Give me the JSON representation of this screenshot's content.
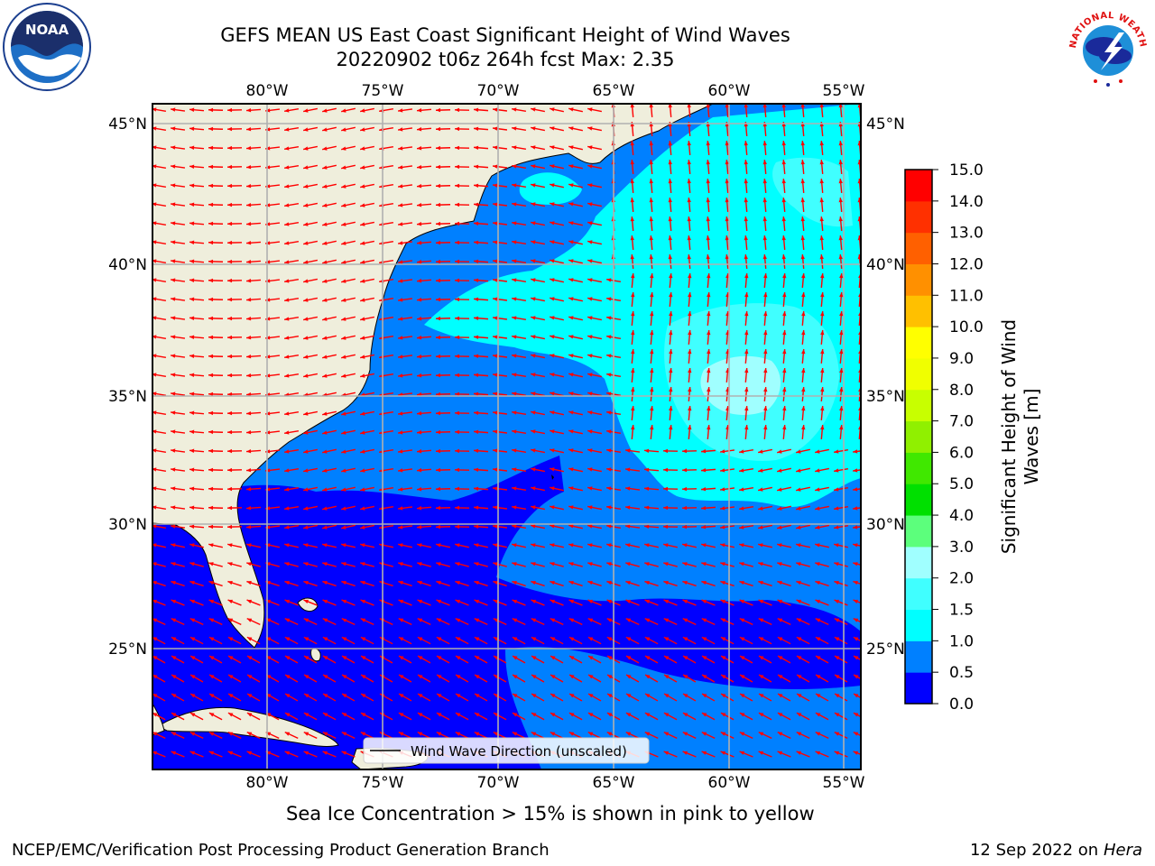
{
  "title_line1": "GEFS MEAN US East Coast Significant Height of Wind Waves",
  "title_line2": "20220902 t06z 264h fcst   Max: 2.35",
  "lon_ticks": [
    "80°W",
    "75°W",
    "70°W",
    "65°W",
    "60°W",
    "55°W"
  ],
  "lat_ticks": [
    "45°N",
    "40°N",
    "35°N",
    "30°N",
    "25°N"
  ],
  "legend_label": "Wind Wave Direction (unscaled)",
  "colorbar": {
    "label_line1": "Significant Height of Wind",
    "label_line2": "Waves [m]",
    "ticks": [
      "0.0",
      "0.5",
      "1.0",
      "1.5",
      "2.0",
      "3.0",
      "4.0",
      "5.0",
      "6.0",
      "7.0",
      "8.0",
      "9.0",
      "10.0",
      "11.0",
      "12.0",
      "13.0",
      "14.0",
      "15.0"
    ],
    "colors": [
      "#0000ff",
      "#0080ff",
      "#00ffff",
      "#40ffff",
      "#a0ffff",
      "#5cff7c",
      "#00e000",
      "#40e800",
      "#90f000",
      "#c8ff00",
      "#f0ff00",
      "#ffff00",
      "#ffc000",
      "#ff9000",
      "#ff6000",
      "#ff3000",
      "#ff0000"
    ]
  },
  "ice_note": "Sea Ice Concentration > 15% is shown in pink to yellow",
  "footer_left": "NCEP/EMC/Verification Post Processing Product Generation Branch",
  "footer_date": "12 Sep 2022 on",
  "footer_machine": "Hera",
  "logos": {
    "noaa": "NOAA",
    "nws": "NATIONAL WEATHER SERVICE"
  },
  "map_colors": {
    "land": "#efeedc",
    "grid": "#b0b0b0",
    "arrow": "#ff0000"
  }
}
